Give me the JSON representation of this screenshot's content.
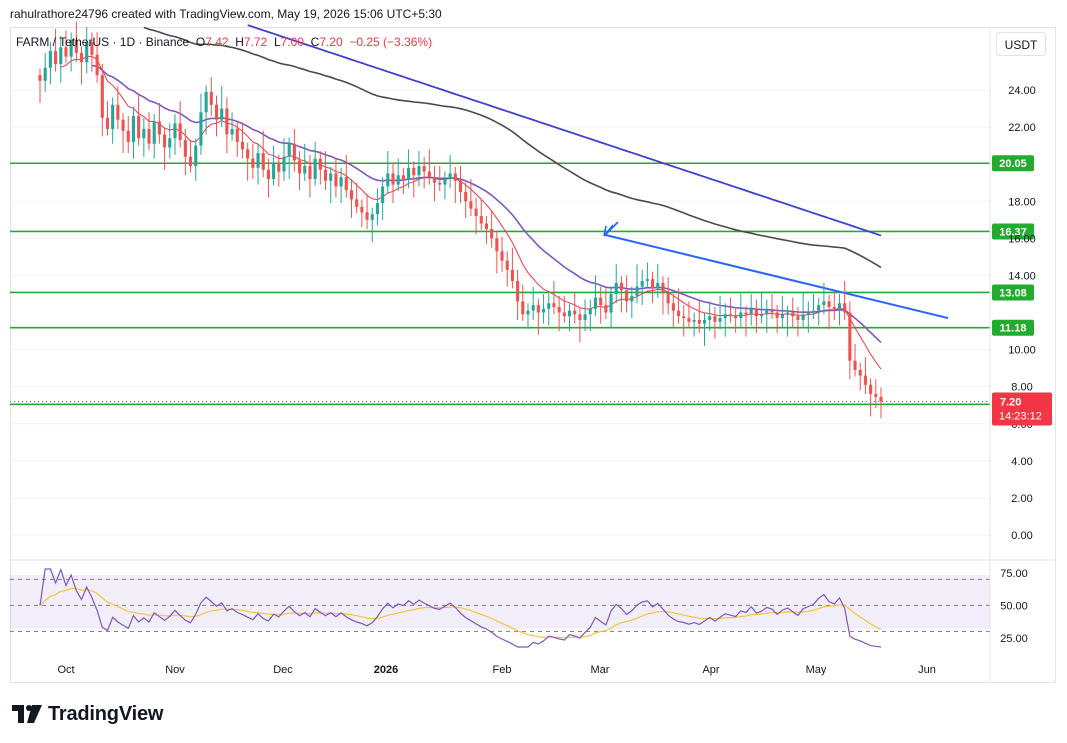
{
  "header": {
    "attribution": "rahulrathore24796 created with TradingView.com, May 19, 2026 15:06 UTC+5:30"
  },
  "legend": {
    "symbol": "FARM / TetherUS · 1D · Binance",
    "open_label": "O",
    "open": "7.42",
    "high_label": "H",
    "high": "7.72",
    "low_label": "L",
    "low": "7.00",
    "close_label": "C",
    "close": "7.20",
    "change": "−0.25 (−3.36%)"
  },
  "currency_button": "USDT",
  "brand": {
    "name": "TradingView"
  },
  "colors": {
    "up": "#26a69a",
    "down": "#ef5350",
    "support": "#22ab2e",
    "ema_fast": "#f23645",
    "ema_mid": "#7e57c2",
    "ema_slow": "#4a4a4a",
    "ema_long": "#3f3fd6",
    "trendline": "#2962ff",
    "rsi": "#7e57c2",
    "rsi_ma": "#f5c342"
  },
  "chart_data": {
    "type": "candlestick",
    "x_ticks": [
      "Oct",
      "Nov",
      "Dec",
      "2026",
      "Feb",
      "Mar",
      "Apr",
      "May",
      "Jun"
    ],
    "y_ticks": [
      "24.00",
      "22.00",
      "18.00",
      "16.00",
      "14.00",
      "10.00",
      "8.00",
      "6.00",
      "4.00",
      "2.00",
      "0.00"
    ],
    "ylim": [
      -1,
      27
    ],
    "last_price": {
      "value": "7.20",
      "countdown": "14:23:12"
    },
    "support_levels": [
      {
        "value": 20.05,
        "label": "20.05"
      },
      {
        "value": 16.37,
        "label": "16.37"
      },
      {
        "value": 13.08,
        "label": "13.08"
      },
      {
        "value": 11.18,
        "label": "11.18"
      },
      {
        "value": 7.05,
        "label": ""
      }
    ],
    "candles_close": [
      24.5,
      25.2,
      26.1,
      25.4,
      26.3,
      25.8,
      26.7,
      26.0,
      25.5,
      26.6,
      25.9,
      24.8,
      22.5,
      21.9,
      23.2,
      22.4,
      21.8,
      21.2,
      22.6,
      21.4,
      21.9,
      21.1,
      22.3,
      21.6,
      20.9,
      21.4,
      22.2,
      21.3,
      20.4,
      19.9,
      21.0,
      22.8,
      23.9,
      23.2,
      22.4,
      23.0,
      21.6,
      21.9,
      21.2,
      20.8,
      20.3,
      19.8,
      20.6,
      19.7,
      19.2,
      20.1,
      19.6,
      20.4,
      21.1,
      20.2,
      19.5,
      19.9,
      19.2,
      20.3,
      19.7,
      19.1,
      19.5,
      18.8,
      19.3,
      18.6,
      18.1,
      17.7,
      17.4,
      17.0,
      17.3,
      17.9,
      18.8,
      19.5,
      18.9,
      19.4,
      19.2,
      19.8,
      19.4,
      19.9,
      19.6,
      19.3,
      19.0,
      18.9,
      19.2,
      19.5,
      19.1,
      18.5,
      18.0,
      17.6,
      17.2,
      16.8,
      16.5,
      16.0,
      15.3,
      14.8,
      14.3,
      13.7,
      12.6,
      11.9,
      12.1,
      12.4,
      12.0,
      12.2,
      12.5,
      12.3,
      12.0,
      11.8,
      12.1,
      11.9,
      11.6,
      11.9,
      12.2,
      12.8,
      12.4,
      12.0,
      13.0,
      13.6,
      13.2,
      12.6,
      12.9,
      13.4,
      13.7,
      13.8,
      13.3,
      13.6,
      13.1,
      12.5,
      12.1,
      11.8,
      11.7,
      11.5,
      11.6,
      11.4,
      11.6,
      11.8,
      11.5,
      11.7,
      11.9,
      11.8,
      11.7,
      12.0,
      11.9,
      12.2,
      11.8,
      11.9,
      12.1,
      12.0,
      11.7,
      11.9,
      12.0,
      11.8,
      11.6,
      11.9,
      12.0,
      12.1,
      12.4,
      12.6,
      12.3,
      12.2,
      12.5,
      12.0,
      9.4,
      8.9,
      8.6,
      8.1,
      7.6,
      7.45,
      7.2
    ],
    "rsi": {
      "levels": [
        "75.00",
        "50.00",
        "25.00"
      ],
      "ylim": [
        18,
        78
      ],
      "upper": 70,
      "middle": 50,
      "lower": 30
    }
  }
}
